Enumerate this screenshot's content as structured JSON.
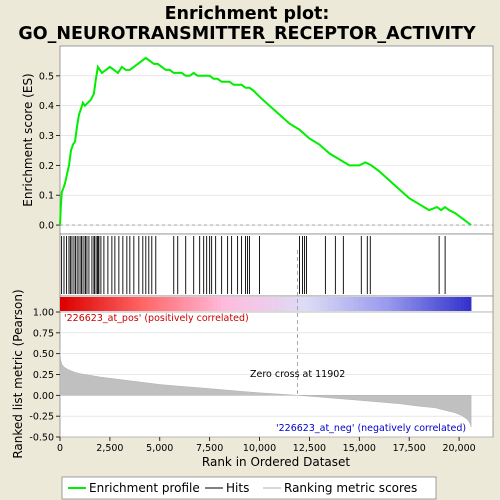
{
  "chart_data": [
    {
      "type": "line",
      "title_line1": "Enrichment plot:",
      "title_line2": "GO_NEUROTRANSMITTER_RECEPTOR_ACTIVITY",
      "ylabel": "Enrichment score (ES)",
      "xlim": [
        0,
        21700
      ],
      "ylim": [
        -0.03,
        0.6
      ],
      "yticks": [
        0.0,
        0.1,
        0.2,
        0.3,
        0.4,
        0.5
      ],
      "ytick_labels": [
        "0.0",
        "0.1",
        "0.2",
        "0.3",
        "0.4",
        "0.5"
      ],
      "series": [
        {
          "name": "Enrichment profile",
          "color": "#00ee00",
          "x": [
            0,
            40,
            90,
            150,
            250,
            350,
            450,
            550,
            650,
            750,
            850,
            950,
            1050,
            1150,
            1250,
            1400,
            1550,
            1700,
            1800,
            1900,
            2000,
            2100,
            2300,
            2500,
            2700,
            2900,
            3100,
            3300,
            3500,
            3700,
            3900,
            4100,
            4300,
            4500,
            4700,
            4900,
            5100,
            5300,
            5500,
            5700,
            5900,
            6100,
            6300,
            6500,
            6700,
            6900,
            7100,
            7300,
            7500,
            7700,
            7900,
            8100,
            8300,
            8500,
            8700,
            8900,
            9100,
            9300,
            9500,
            9700,
            10000,
            10500,
            11000,
            11500,
            12000,
            12500,
            13000,
            13500,
            14000,
            14500,
            15000,
            15300,
            15600,
            16000,
            16500,
            17000,
            17500,
            18000,
            18500,
            18900,
            19100,
            19300,
            19500,
            19800,
            20200,
            20600
          ],
          "y": [
            0.0,
            0.06,
            0.11,
            0.12,
            0.14,
            0.17,
            0.2,
            0.25,
            0.27,
            0.28,
            0.33,
            0.37,
            0.39,
            0.41,
            0.4,
            0.41,
            0.42,
            0.44,
            0.49,
            0.53,
            0.52,
            0.51,
            0.52,
            0.53,
            0.52,
            0.51,
            0.53,
            0.52,
            0.52,
            0.53,
            0.54,
            0.55,
            0.56,
            0.55,
            0.54,
            0.54,
            0.53,
            0.52,
            0.52,
            0.51,
            0.51,
            0.51,
            0.5,
            0.5,
            0.51,
            0.5,
            0.5,
            0.5,
            0.5,
            0.49,
            0.49,
            0.48,
            0.48,
            0.48,
            0.47,
            0.47,
            0.47,
            0.46,
            0.46,
            0.45,
            0.43,
            0.4,
            0.37,
            0.34,
            0.32,
            0.29,
            0.27,
            0.24,
            0.22,
            0.2,
            0.2,
            0.21,
            0.2,
            0.18,
            0.15,
            0.12,
            0.09,
            0.07,
            0.05,
            0.06,
            0.05,
            0.06,
            0.05,
            0.04,
            0.02,
            0.0
          ]
        }
      ]
    },
    {
      "type": "scatter",
      "name": "Hits",
      "hit_positions": [
        80,
        200,
        330,
        450,
        520,
        600,
        700,
        780,
        860,
        950,
        1050,
        1100,
        1200,
        1280,
        1350,
        1450,
        1600,
        1700,
        1750,
        1850,
        1900,
        1950,
        2050,
        2200,
        2400,
        2600,
        2750,
        2950,
        3150,
        3350,
        3500,
        3700,
        3950,
        4150,
        4300,
        4450,
        4600,
        4800,
        5700,
        5900,
        6300,
        6700,
        7000,
        7200,
        7350,
        7500,
        7600,
        7800,
        8100,
        8400,
        8600,
        8900,
        9100,
        9300,
        9400,
        9500,
        10000,
        12000,
        12150,
        12250,
        12350,
        13300,
        13800,
        14200,
        15100,
        15400,
        15550,
        19000,
        19300
      ]
    },
    {
      "type": "heatmap",
      "name": "Ranking metric scores",
      "colors": [
        "#dd0000",
        "#ff6666",
        "#ffbbdd",
        "#dcdcf6",
        "#9999ee",
        "#3333cc"
      ]
    },
    {
      "type": "area",
      "name": "Ranking metric scores",
      "ylabel": "Ranked list metric (Pearson)",
      "xlabel": "Rank in Ordered Dataset",
      "xlim": [
        0,
        21700
      ],
      "ylim": [
        -0.5,
        1.0
      ],
      "yticks": [
        -0.5,
        -0.25,
        0.0,
        0.25,
        0.5,
        0.75,
        1.0
      ],
      "ytick_labels": [
        "-0.50",
        "-0.25",
        "0.00",
        "0.25",
        "0.50",
        "0.75",
        "1.00"
      ],
      "xticks": [
        0,
        2500,
        5000,
        7500,
        10000,
        12500,
        15000,
        17500,
        20000
      ],
      "xtick_labels": [
        "0",
        "2,500",
        "5,000",
        "7,500",
        "10,000",
        "12,500",
        "15,000",
        "17,500",
        "20,000"
      ],
      "x": [
        0,
        10,
        30,
        60,
        100,
        200,
        400,
        700,
        1000,
        1500,
        2000,
        3000,
        4000,
        5000,
        6000,
        7000,
        8000,
        9000,
        10000,
        11000,
        11902,
        13000,
        14000,
        15000,
        16000,
        17000,
        18000,
        18800,
        19300,
        19800,
        20100,
        20300,
        20450,
        20550,
        20600
      ],
      "y": [
        0.55,
        0.48,
        0.43,
        0.4,
        0.37,
        0.34,
        0.31,
        0.28,
        0.26,
        0.24,
        0.22,
        0.19,
        0.16,
        0.13,
        0.11,
        0.09,
        0.07,
        0.05,
        0.03,
        0.015,
        0.0,
        -0.02,
        -0.04,
        -0.06,
        -0.08,
        -0.1,
        -0.13,
        -0.15,
        -0.18,
        -0.21,
        -0.24,
        -0.27,
        -0.3,
        -0.34,
        -0.38
      ],
      "zero_cross": 11902,
      "annotations": [
        {
          "text": "'226623_at_pos' (positively correlated)",
          "color": "#cc0000"
        },
        {
          "text": "Zero cross at 11902",
          "color": "#000000"
        },
        {
          "text": "'226623_at_neg' (negatively correlated)",
          "color": "#0000cc"
        }
      ]
    }
  ],
  "legend": {
    "items": [
      {
        "label": "Enrichment profile",
        "color": "#00ee00"
      },
      {
        "label": "Hits",
        "color": "#000000"
      },
      {
        "label": "Ranking metric scores",
        "color": "#c0c0c0"
      }
    ]
  }
}
